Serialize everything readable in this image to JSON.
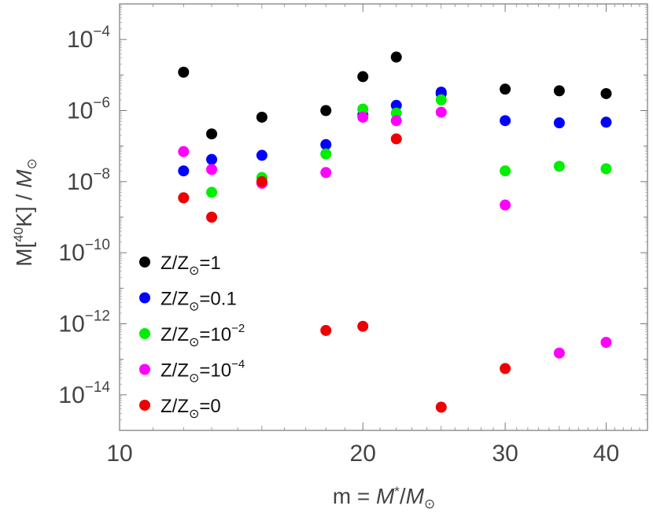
{
  "chart_data": {
    "type": "scatter",
    "xscale": "log",
    "yscale": "log",
    "xlim": [
      10,
      45
    ],
    "ylim": [
      1e-15,
      0.001
    ],
    "xlabel": {
      "pre": "m = ",
      "var": "M",
      "star": "*",
      "slash": "/",
      "var2": "M",
      "sun": "⊙"
    },
    "ylabel": {
      "pre": "M[",
      "iso": "40",
      "elem": "K] / ",
      "var": "M",
      "sun": "⊙"
    },
    "xticks": [
      {
        "value": 10,
        "label": "10"
      },
      {
        "value": 20,
        "label": "20"
      },
      {
        "value": 30,
        "label": "30"
      },
      {
        "value": 40,
        "label": "40"
      }
    ],
    "yticks": [
      {
        "exp": -14,
        "base": "10",
        "power": "−14"
      },
      {
        "exp": -12,
        "base": "10",
        "power": "−12"
      },
      {
        "exp": -10,
        "base": "10",
        "power": "−10"
      },
      {
        "exp": -8,
        "base": "10",
        "power": "−8"
      },
      {
        "exp": -6,
        "base": "10",
        "power": "−6"
      },
      {
        "exp": -4,
        "base": "10",
        "power": "−4"
      }
    ],
    "series": [
      {
        "name": "Z/Z⊙=1",
        "label_pre": "Z/Z",
        "label_sun": "⊙",
        "label_eq": "=1",
        "label_sup": "",
        "color": "#000000",
        "points": [
          [
            12,
            1.2e-05
          ],
          [
            13,
            2.2e-07
          ],
          [
            15,
            6.5e-07
          ],
          [
            18,
            1e-06
          ],
          [
            20,
            9e-06
          ],
          [
            22,
            3.2e-05
          ],
          [
            25,
            3e-06
          ],
          [
            30,
            4e-06
          ],
          [
            35,
            3.6e-06
          ],
          [
            40,
            3e-06
          ]
        ]
      },
      {
        "name": "Z/Z⊙=0.1",
        "label_pre": "Z/Z",
        "label_sun": "⊙",
        "label_eq": "=0.1",
        "label_sup": "",
        "color": "#0000ff",
        "points": [
          [
            12,
            2e-08
          ],
          [
            13,
            4.2e-08
          ],
          [
            15,
            5.5e-08
          ],
          [
            18,
            1.1e-07
          ],
          [
            20,
            7.5e-07
          ],
          [
            22,
            1.4e-06
          ],
          [
            25,
            3.3e-06
          ],
          [
            30,
            5.2e-07
          ],
          [
            35,
            4.5e-07
          ],
          [
            40,
            4.7e-07
          ]
        ]
      },
      {
        "name": "Z/Z⊙=10^-2",
        "label_pre": "Z/Z",
        "label_sun": "⊙",
        "label_eq": "=10",
        "label_sup": "−2",
        "color": "#00ee00",
        "points": [
          [
            12,
            3.5e-09
          ],
          [
            13,
            5e-09
          ],
          [
            15,
            1.3e-08
          ],
          [
            18,
            6e-08
          ],
          [
            20,
            1.1e-06
          ],
          [
            22,
            8.5e-07
          ],
          [
            25,
            2e-06
          ],
          [
            30,
            2e-08
          ],
          [
            35,
            2.7e-08
          ],
          [
            40,
            2.3e-08
          ]
        ]
      },
      {
        "name": "Z/Z⊙=10^-4",
        "label_pre": "Z/Z",
        "label_sun": "⊙",
        "label_eq": "=10",
        "label_sup": "−4",
        "color": "#ff00ff",
        "points": [
          [
            12,
            7e-08
          ],
          [
            13,
            2.2e-08
          ],
          [
            15,
            9e-09
          ],
          [
            18,
            1.8e-08
          ],
          [
            20,
            6.5e-07
          ],
          [
            22,
            5.2e-07
          ],
          [
            25,
            9e-07
          ],
          [
            30,
            2.2e-09
          ],
          [
            35,
            1.5e-13
          ],
          [
            40,
            3e-13
          ]
        ]
      },
      {
        "name": "Z/Z⊙=0",
        "label_pre": "Z/Z",
        "label_sun": "⊙",
        "label_eq": "=0",
        "label_sup": "",
        "color": "#ee0000",
        "points": [
          [
            12,
            3.5e-09
          ],
          [
            13,
            1e-09
          ],
          [
            15,
            1e-08
          ],
          [
            18,
            6.5e-13
          ],
          [
            20,
            8.5e-13
          ],
          [
            22,
            1.6e-07
          ],
          [
            25,
            4.5e-15
          ],
          [
            30,
            5.5e-14
          ]
        ]
      }
    ],
    "legend_position": "bottom-left"
  }
}
